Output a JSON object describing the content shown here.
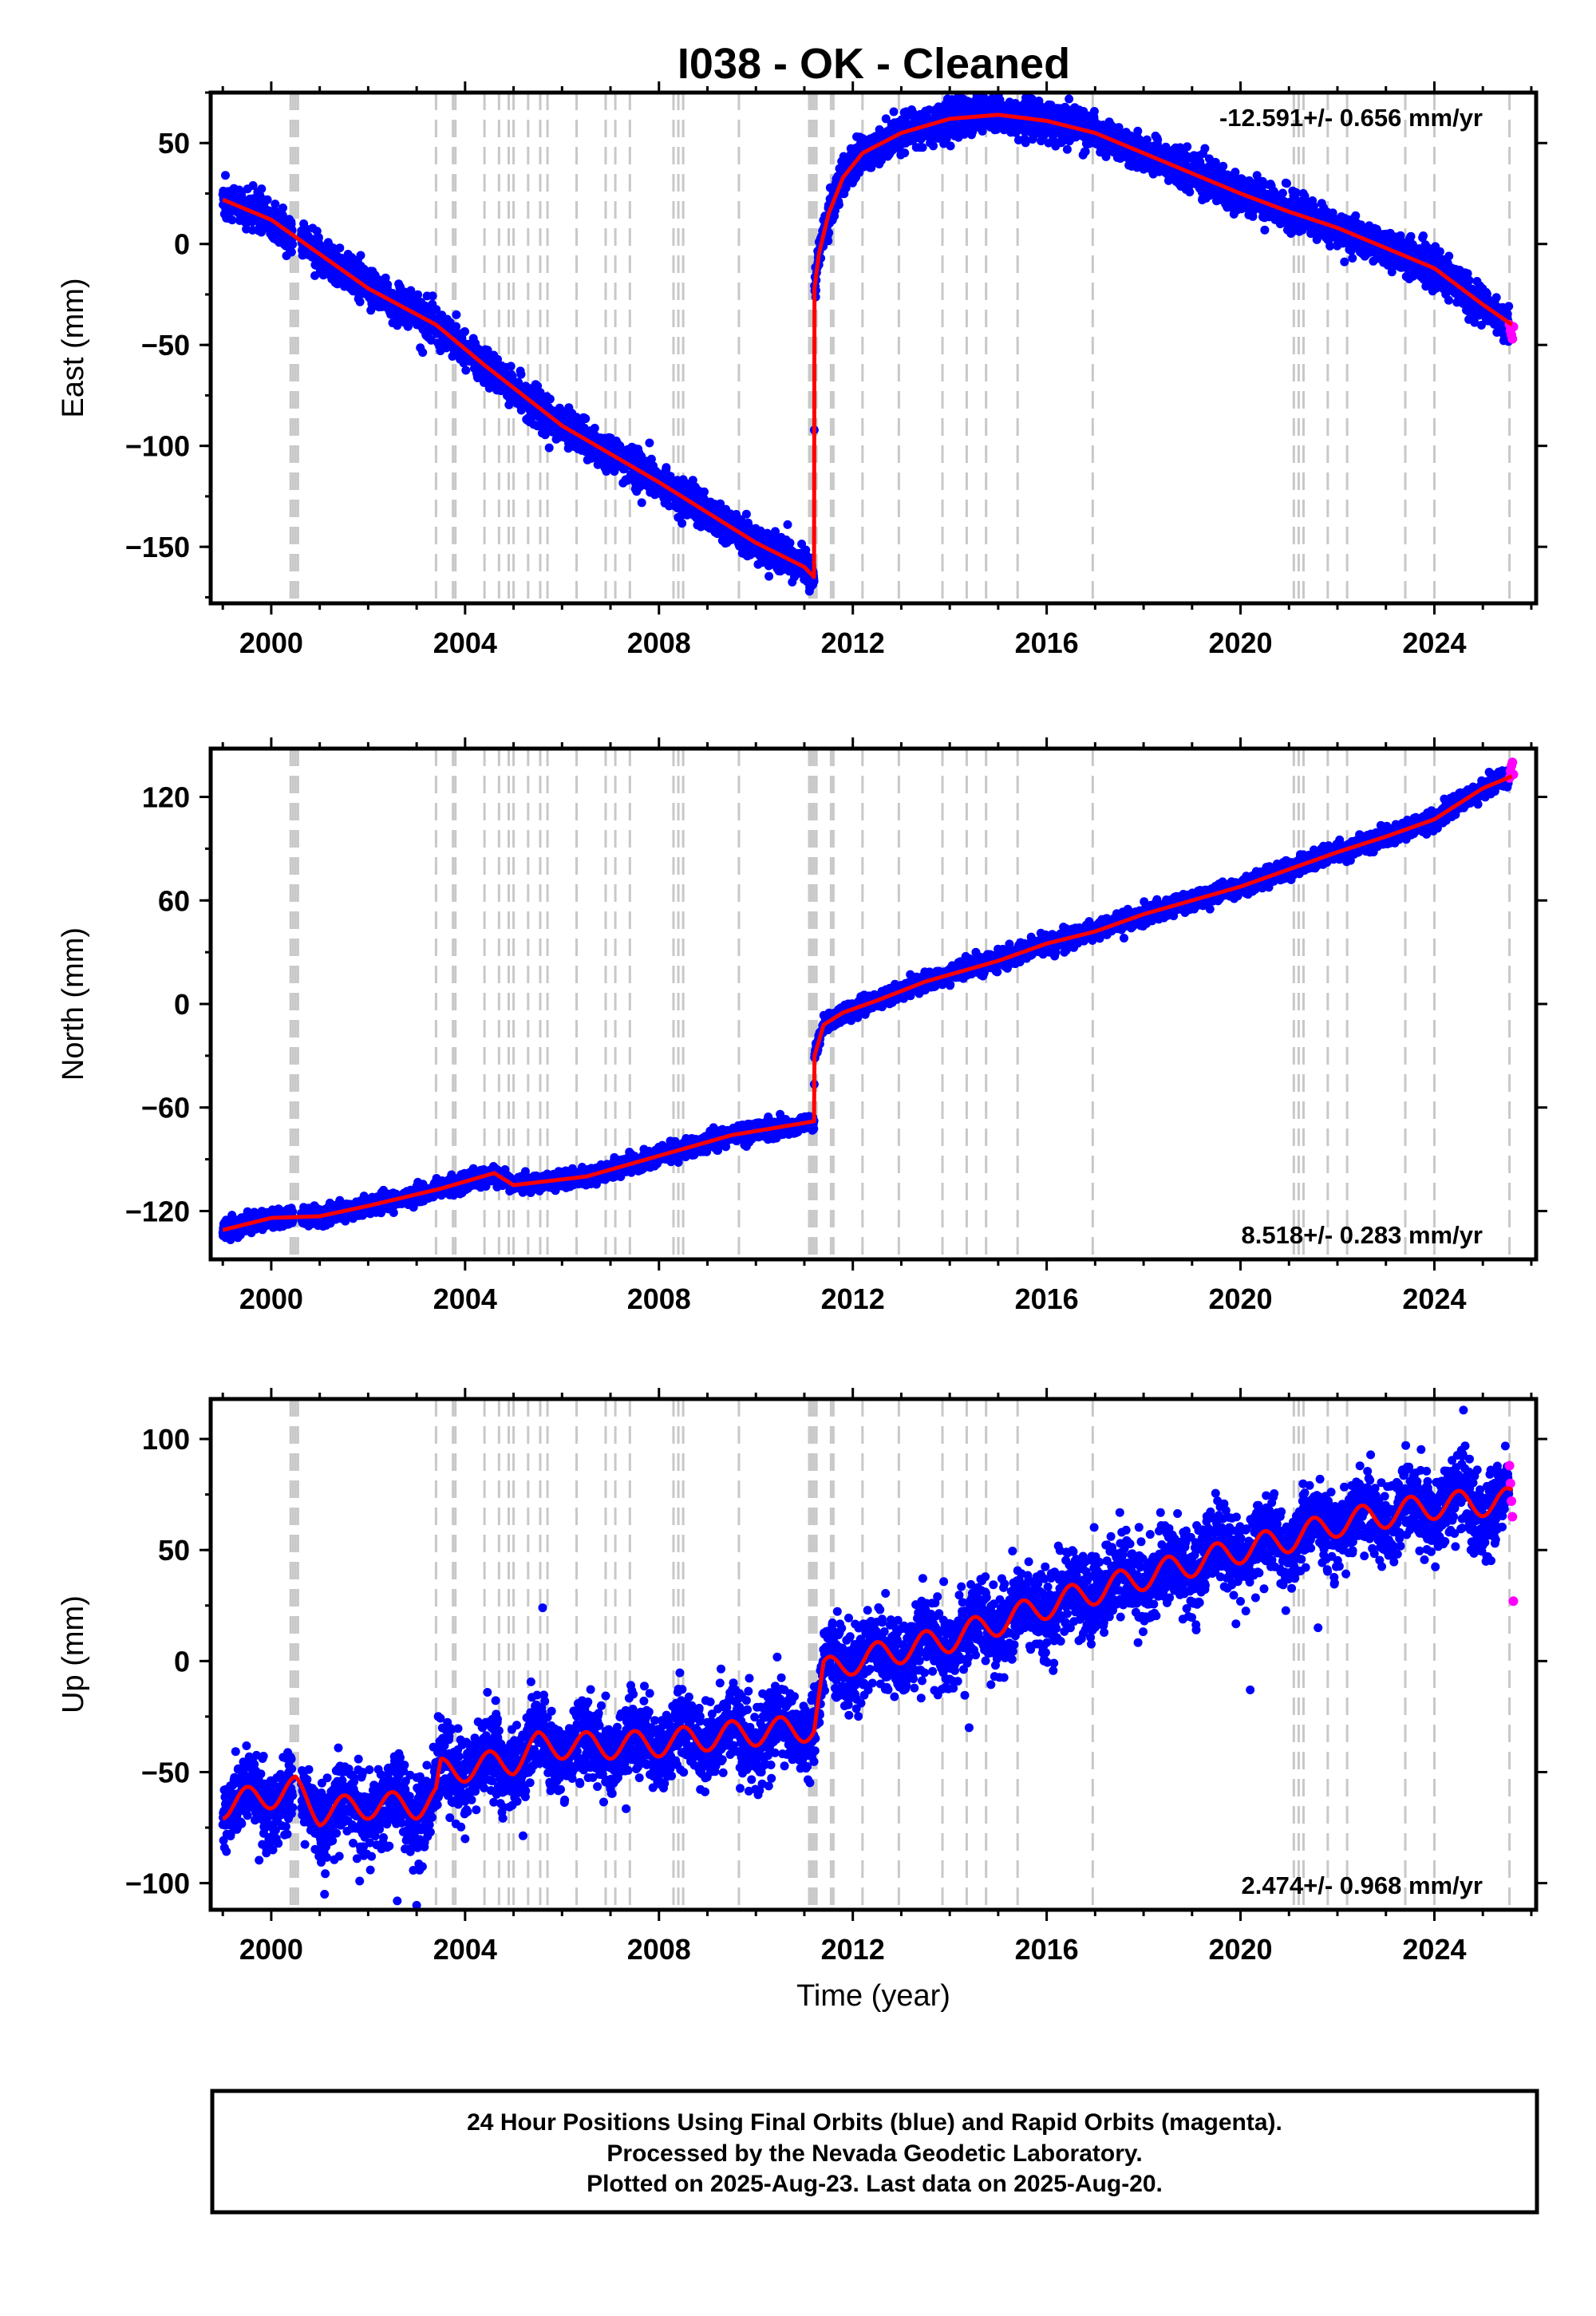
{
  "title": "I038  - OK - Cleaned",
  "colors": {
    "final_orbits": "#0000ff",
    "rapid_orbits": "#ff00ff",
    "model": "#ff0000",
    "events": "#c8c8c8",
    "axes": "#000000"
  },
  "chart_data": [
    {
      "type": "scatter",
      "ylabel": "East (mm)",
      "xlim": [
        1998.75,
        2026.1
      ],
      "ylim": [
        -178,
        75
      ],
      "x_ticks": [
        2000,
        2004,
        2008,
        2012,
        2016,
        2020,
        2024
      ],
      "y_ticks": [
        -150,
        -100,
        -50,
        0,
        50
      ],
      "y_tick_labels": [
        "−150",
        "−100",
        "−50",
        "0",
        "50"
      ],
      "rate_label": "-12.591+/- 0.656 mm/yr",
      "rate_position": "top-right",
      "noise_mm": 4.5,
      "model_nodes": [
        [
          1999.0,
          22
        ],
        [
          2000.0,
          12
        ],
        [
          2002.0,
          -22
        ],
        [
          2003.4,
          -40
        ],
        [
          2004.4,
          -60
        ],
        [
          2006.0,
          -90
        ],
        [
          2008.0,
          -118
        ],
        [
          2010.0,
          -148
        ],
        [
          2011.0,
          -160
        ],
        [
          2011.2,
          -165
        ],
        [
          2011.21,
          -22
        ],
        [
          2011.3,
          -5
        ],
        [
          2011.5,
          15
        ],
        [
          2011.8,
          33
        ],
        [
          2012.2,
          45
        ],
        [
          2013.0,
          55
        ],
        [
          2014.0,
          62
        ],
        [
          2015.0,
          64
        ],
        [
          2016.0,
          61
        ],
        [
          2017.0,
          55
        ],
        [
          2018.0,
          45
        ],
        [
          2019.0,
          35
        ],
        [
          2020.0,
          25
        ],
        [
          2021.0,
          16
        ],
        [
          2022.0,
          8
        ],
        [
          2023.0,
          -2
        ],
        [
          2024.0,
          -12
        ],
        [
          2025.0,
          -30
        ],
        [
          2025.6,
          -40
        ]
      ],
      "rapid_points": [
        [
          2025.55,
          -40
        ],
        [
          2025.57,
          -43
        ],
        [
          2025.59,
          -45
        ],
        [
          2025.61,
          -47
        ],
        [
          2025.63,
          -41
        ]
      ]
    },
    {
      "type": "scatter",
      "ylabel": "North (mm)",
      "xlim": [
        1998.75,
        2026.1
      ],
      "ylim": [
        -148,
        148
      ],
      "x_ticks": [
        2000,
        2004,
        2008,
        2012,
        2016,
        2020,
        2024
      ],
      "y_ticks": [
        -120,
        -60,
        0,
        60,
        120
      ],
      "y_tick_labels": [
        "−120",
        "−60",
        "0",
        "60",
        "120"
      ],
      "rate_label": "8.518+/- 0.283 mm/yr",
      "rate_position": "bottom-right",
      "noise_mm": 2.5,
      "model_nodes": [
        [
          1999.0,
          -131
        ],
        [
          2000.0,
          -124
        ],
        [
          2001.0,
          -123
        ],
        [
          2002.0,
          -117
        ],
        [
          2003.5,
          -107
        ],
        [
          2004.6,
          -98
        ],
        [
          2005.0,
          -105
        ],
        [
          2006.5,
          -100
        ],
        [
          2008.0,
          -88
        ],
        [
          2009.5,
          -76
        ],
        [
          2011.2,
          -68
        ],
        [
          2011.21,
          -30
        ],
        [
          2011.4,
          -12
        ],
        [
          2011.8,
          -5
        ],
        [
          2012.5,
          2
        ],
        [
          2013.5,
          13
        ],
        [
          2015.0,
          25
        ],
        [
          2016.0,
          35
        ],
        [
          2017.0,
          42
        ],
        [
          2018.0,
          52
        ],
        [
          2019.0,
          60
        ],
        [
          2020.0,
          68
        ],
        [
          2021.0,
          78
        ],
        [
          2022.0,
          88
        ],
        [
          2023.0,
          97
        ],
        [
          2024.0,
          107
        ],
        [
          2025.0,
          125
        ],
        [
          2025.6,
          132
        ]
      ],
      "rapid_points": [
        [
          2025.55,
          131
        ],
        [
          2025.57,
          135
        ],
        [
          2025.59,
          138
        ],
        [
          2025.61,
          140
        ],
        [
          2025.63,
          133
        ]
      ]
    },
    {
      "type": "scatter",
      "xlabel": "Time (year)",
      "ylabel": "Up (mm)",
      "xlim": [
        1998.75,
        2026.1
      ],
      "ylim": [
        -112,
        118
      ],
      "x_ticks": [
        2000,
        2004,
        2008,
        2012,
        2016,
        2020,
        2024
      ],
      "y_ticks": [
        -100,
        -50,
        0,
        50,
        100
      ],
      "y_tick_labels": [
        "−100",
        "−50",
        "0",
        "50",
        "100"
      ],
      "rate_label": "2.474+/- 0.968 mm/yr",
      "rate_position": "bottom-right",
      "noise_mm": 9,
      "seasonal_amplitude_mm": 6,
      "model_nodes": [
        [
          1999.0,
          -65
        ],
        [
          2000.5,
          -58
        ],
        [
          2001.0,
          -68
        ],
        [
          2002.0,
          -65
        ],
        [
          2003.0,
          -65
        ],
        [
          2003.4,
          -62
        ],
        [
          2003.5,
          -50
        ],
        [
          2005.0,
          -45
        ],
        [
          2005.5,
          -38
        ],
        [
          2007.0,
          -38
        ],
        [
          2008.0,
          -37
        ],
        [
          2009.5,
          -33
        ],
        [
          2011.2,
          -30
        ],
        [
          2011.4,
          -5
        ],
        [
          2012.0,
          0
        ],
        [
          2014.0,
          10
        ],
        [
          2016.0,
          25
        ],
        [
          2018.0,
          38
        ],
        [
          2020.0,
          50
        ],
        [
          2021.0,
          55
        ],
        [
          2022.0,
          62
        ],
        [
          2023.0,
          66
        ],
        [
          2024.0,
          70
        ],
        [
          2025.6,
          72
        ]
      ],
      "outliers": [
        [
          2003.0,
          -110
        ],
        [
          2005.6,
          24
        ],
        [
          2004.0,
          -80
        ],
        [
          2020.2,
          -13
        ],
        [
          2021.6,
          15
        ],
        [
          2014.4,
          -30
        ],
        [
          2024.6,
          113
        ],
        [
          2002.6,
          -108
        ],
        [
          2001.1,
          -105
        ]
      ],
      "rapid_points": [
        [
          2025.55,
          88
        ],
        [
          2025.57,
          80
        ],
        [
          2025.59,
          72
        ],
        [
          2025.61,
          65
        ],
        [
          2025.63,
          27
        ]
      ]
    }
  ],
  "events": [
    2000.4,
    2000.45,
    2000.5,
    2000.55,
    2003.4,
    2003.75,
    2003.8,
    2004.4,
    2004.7,
    2004.9,
    2005.0,
    2005.3,
    2005.55,
    2005.7,
    2006.3,
    2006.9,
    2007.1,
    2007.4,
    2008.3,
    2008.4,
    2008.5,
    2009.65,
    2011.1,
    2011.15,
    2011.2,
    2011.25,
    2011.55,
    2011.6,
    2012.2,
    2012.95,
    2013.85,
    2014.35,
    2014.75,
    2015.4,
    2016.95,
    2021.1,
    2021.2,
    2021.3,
    2021.8,
    2022.2,
    2023.4,
    2024.0,
    2025.55
  ],
  "footer": {
    "line1": "24 Hour Positions Using Final Orbits (blue) and Rapid Orbits (magenta).",
    "line2": "Processed by the Nevada Geodetic Laboratory.",
    "line3": "Plotted on 2025-Aug-23. Last data on 2025-Aug-20."
  }
}
